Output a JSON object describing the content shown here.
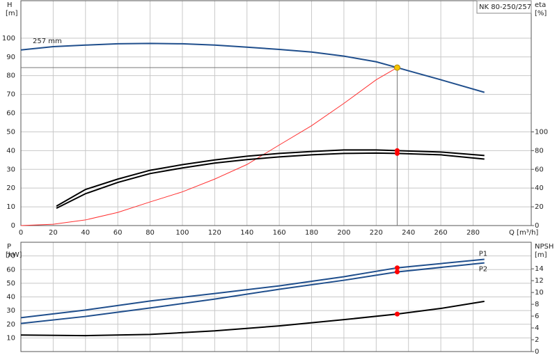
{
  "chart_data": [
    {
      "type": "line",
      "title": "NK 80-250/257",
      "y_label": "H",
      "y_unit": "[m]",
      "y2_label": "eta",
      "y2_unit": "[%]",
      "x_label": "Q [m³/h]",
      "xlim": [
        0,
        316
      ],
      "xticks": [
        0,
        20,
        40,
        60,
        80,
        100,
        120,
        140,
        160,
        180,
        200,
        220,
        240,
        260,
        280
      ],
      "ylim": [
        0,
        120
      ],
      "yticks": [
        0,
        10,
        20,
        30,
        40,
        50,
        60,
        70,
        80,
        90,
        100
      ],
      "y2lim": [
        0,
        240
      ],
      "y2ticks": [
        0,
        20,
        40,
        60,
        80,
        100
      ],
      "grid": true,
      "duty_x": 233,
      "duty_y": 84.3,
      "duty_color": "#f5c400",
      "marker_color": "#ff0000",
      "series": [
        {
          "name": "257 mm",
          "color": "#1f4e8c",
          "axis": "y",
          "x": [
            0,
            20,
            40,
            60,
            80,
            100,
            120,
            140,
            160,
            180,
            200,
            220,
            233,
            240,
            260,
            287
          ],
          "values": [
            93.7,
            95.5,
            96.3,
            97,
            97.2,
            97,
            96.3,
            95.2,
            94,
            92.6,
            90.4,
            87.4,
            84.3,
            82.6,
            77.8,
            71.1
          ]
        },
        {
          "color": "#ff3030",
          "axis": "y",
          "x": [
            0,
            20,
            40,
            60,
            80,
            100,
            120,
            140,
            160,
            180,
            200,
            220,
            233
          ],
          "values": [
            0,
            0.7,
            3,
            7,
            12.6,
            18,
            24.8,
            32.6,
            43,
            53.3,
            65.2,
            77.8,
            84.3
          ]
        },
        {
          "color": "#000000",
          "axis": "y2",
          "duty_marker": true,
          "x": [
            22,
            40,
            60,
            80,
            100,
            120,
            140,
            160,
            180,
            200,
            220,
            233,
            260,
            287
          ],
          "values": [
            20.7,
            38.5,
            49.6,
            59,
            65,
            70,
            74,
            77,
            79,
            80.7,
            80.7,
            80,
            78.5,
            74.8
          ]
        },
        {
          "color": "#000000",
          "axis": "y2",
          "duty_marker": true,
          "x": [
            22,
            40,
            60,
            80,
            100,
            120,
            140,
            160,
            180,
            200,
            220,
            233,
            260,
            287
          ],
          "values": [
            18.5,
            34,
            46,
            55.5,
            61.5,
            66.7,
            70.4,
            73.3,
            75.5,
            77,
            77.4,
            77,
            75.5,
            71
          ]
        }
      ]
    },
    {
      "type": "line",
      "y_label": "P",
      "y_unit": "[kW]",
      "y2_label": "NPSH",
      "y2_unit": "[m]",
      "xlim": [
        0,
        316
      ],
      "ylim": [
        0,
        80
      ],
      "yticks": [
        10,
        20,
        30,
        40,
        50,
        60,
        70
      ],
      "y2lim": [
        0,
        18.5
      ],
      "y2ticks": [
        0,
        2,
        4,
        6,
        8,
        10,
        12,
        14
      ],
      "grid": true,
      "duty_x": 233,
      "marker_color": "#ff0000",
      "series": [
        {
          "name": "P1",
          "color": "#1f4e8c",
          "axis": "y",
          "duty_marker": true,
          "x": [
            0,
            40,
            80,
            120,
            160,
            200,
            233,
            287
          ],
          "values": [
            24.8,
            30.4,
            37,
            42.5,
            48.1,
            54.8,
            61.3,
            67.5
          ]
        },
        {
          "name": "P2",
          "color": "#1f4e8c",
          "axis": "y",
          "duty_marker": true,
          "x": [
            0,
            40,
            80,
            120,
            160,
            200,
            233,
            287
          ],
          "values": [
            20.6,
            25.7,
            31.9,
            38.4,
            45.6,
            52.2,
            58.3,
            64.9
          ]
        },
        {
          "color": "#000000",
          "axis": "y2",
          "duty_marker": true,
          "x": [
            0,
            40,
            80,
            120,
            160,
            200,
            233,
            260,
            287
          ],
          "values": [
            2.8,
            2.7,
            2.9,
            3.5,
            4.35,
            5.4,
            6.35,
            7.3,
            8.5
          ]
        }
      ]
    }
  ]
}
